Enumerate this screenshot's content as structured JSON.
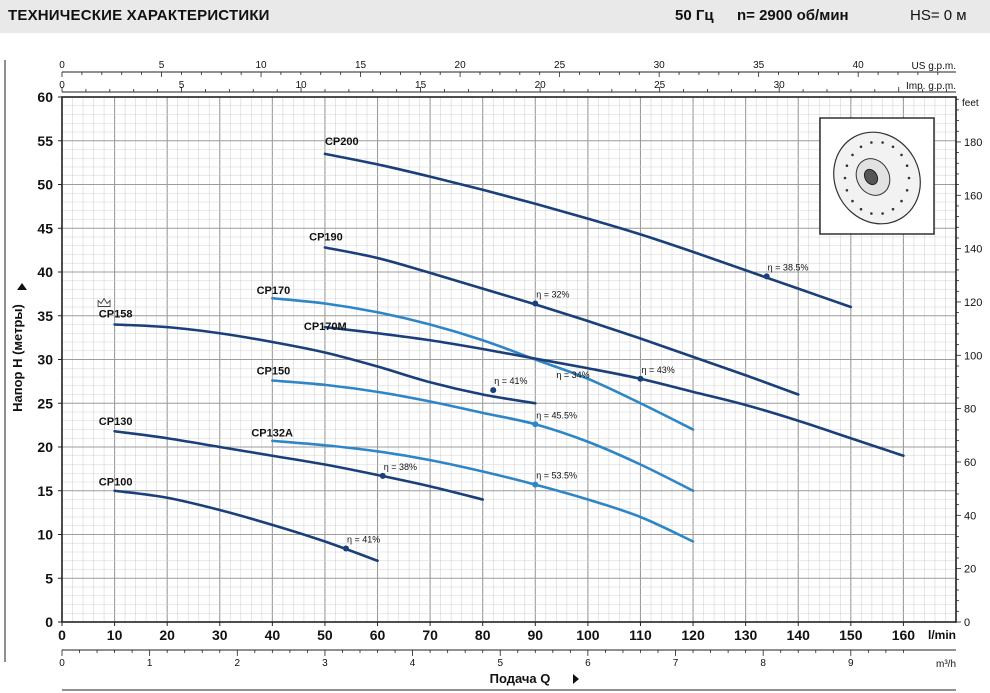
{
  "header": {
    "title": "ТЕХНИЧЕСКИЕ ХАРАКТЕРИСТИКИ",
    "frequency": "50 Гц",
    "speed": "n= 2900 об/мин",
    "hs": "HS= 0 м"
  },
  "chart_data": {
    "type": "line",
    "xlabel": "Подача Q",
    "ylabel": "Напор H (метры)",
    "x_unit": "l/min",
    "xlim": [
      0,
      170
    ],
    "ylim": [
      0,
      60
    ],
    "grid": true,
    "axes": {
      "bottom_lmin": {
        "ticks": [
          0,
          10,
          20,
          30,
          40,
          50,
          60,
          70,
          80,
          90,
          100,
          110,
          120,
          130,
          140,
          150,
          160
        ],
        "unit": "l/min"
      },
      "bottom_m3h": {
        "ticks": [
          0,
          1,
          2,
          3,
          4,
          5,
          6,
          7,
          8,
          9
        ],
        "unit": "m³/h"
      },
      "top_usgpm": {
        "ticks": [
          0,
          5,
          10,
          15,
          20,
          25,
          30,
          35,
          40
        ],
        "unit": "US g.p.m."
      },
      "top_impgpm": {
        "ticks": [
          0,
          5,
          10,
          15,
          20,
          25,
          30
        ],
        "unit": "Imp. g.p.m."
      },
      "left_m": {
        "ticks": [
          0,
          5,
          10,
          15,
          20,
          25,
          30,
          35,
          40,
          45,
          50,
          55,
          60
        ]
      },
      "right_feet": {
        "ticks": [
          0,
          20,
          40,
          60,
          80,
          100,
          120,
          140,
          160,
          180
        ],
        "unit": "feet"
      }
    },
    "series": [
      {
        "name": "CP200",
        "color": "#1b3f7a",
        "label_at": [
          50,
          54.5
        ],
        "x": [
          50,
          60,
          70,
          80,
          90,
          100,
          110,
          120,
          130,
          140,
          150
        ],
        "y": [
          53.5,
          52.3,
          50.9,
          49.4,
          47.8,
          46.1,
          44.3,
          42.3,
          40.2,
          38.1,
          36.0
        ],
        "eff": {
          "label": "η = 38.5%",
          "x": 134,
          "y": 39.5
        }
      },
      {
        "name": "CP190",
        "color": "#1b3f7a",
        "label_at": [
          47,
          43.6
        ],
        "x": [
          50,
          60,
          70,
          80,
          90,
          100,
          110,
          120,
          130,
          140
        ],
        "y": [
          42.8,
          41.6,
          39.9,
          38.1,
          36.3,
          34.4,
          32.4,
          30.3,
          28.2,
          26.0
        ],
        "eff": {
          "label": "η = 32%",
          "x": 90,
          "y": 36.4
        }
      },
      {
        "name": "CP170",
        "color": "#2f86c6",
        "label_at": [
          37,
          37.5
        ],
        "x": [
          40,
          50,
          60,
          70,
          80,
          90,
          100,
          110,
          120
        ],
        "y": [
          37.0,
          36.4,
          35.4,
          34.0,
          32.2,
          30.0,
          27.8,
          25.0,
          22.0
        ],
        "eff": {
          "label": "η = 34%",
          "x": 94,
          "y": 27.9,
          "marker": false
        }
      },
      {
        "name": "CP170M",
        "color": "#1b3f7a",
        "label_at": [
          46,
          33.4
        ],
        "x": [
          50,
          60,
          70,
          80,
          90,
          100,
          110,
          120,
          130,
          140,
          150,
          160
        ],
        "y": [
          33.7,
          33.0,
          32.2,
          31.2,
          30.1,
          29.0,
          27.8,
          26.3,
          24.8,
          23.0,
          21.0,
          19.0
        ],
        "eff": {
          "label": "η = 43%",
          "x": 110,
          "y": 27.8
        }
      },
      {
        "name": "CP158",
        "color": "#1b3f7a",
        "label_at": [
          7,
          34.8
        ],
        "x": [
          10,
          20,
          30,
          40,
          50,
          60,
          70,
          80,
          90
        ],
        "y": [
          34.0,
          33.7,
          33.0,
          32.0,
          30.8,
          29.2,
          27.4,
          26.0,
          25.0
        ],
        "eff": {
          "label": "η = 41%",
          "x": 82,
          "y": 26.5
        }
      },
      {
        "name": "CP150",
        "color": "#2f86c6",
        "label_at": [
          37,
          28.3
        ],
        "x": [
          40,
          50,
          60,
          70,
          80,
          90,
          100,
          110,
          120
        ],
        "y": [
          27.6,
          27.1,
          26.3,
          25.2,
          23.9,
          22.6,
          20.6,
          18.0,
          15.0
        ],
        "eff": {
          "label": "η = 45.5%",
          "x": 90,
          "y": 22.6
        }
      },
      {
        "name": "CP130",
        "color": "#1b3f7a",
        "label_at": [
          7,
          22.5
        ],
        "x": [
          10,
          20,
          30,
          40,
          50,
          60,
          70,
          80
        ],
        "y": [
          21.8,
          21.0,
          20.0,
          19.0,
          18.0,
          16.8,
          15.5,
          14.0
        ],
        "eff": {
          "label": "η = 38%",
          "x": 61,
          "y": 16.7
        }
      },
      {
        "name": "CP132A",
        "color": "#2f86c6",
        "label_at": [
          36,
          21.2
        ],
        "x": [
          40,
          50,
          60,
          70,
          80,
          90,
          100,
          110,
          120
        ],
        "y": [
          20.7,
          20.2,
          19.5,
          18.5,
          17.2,
          15.7,
          14.0,
          12.0,
          9.2
        ],
        "eff": {
          "label": "η = 53.5%",
          "x": 90,
          "y": 15.7
        }
      },
      {
        "name": "CP100",
        "color": "#1b3f7a",
        "label_at": [
          7,
          15.6
        ],
        "x": [
          10,
          20,
          30,
          40,
          50,
          60
        ],
        "y": [
          15.0,
          14.2,
          12.8,
          11.1,
          9.2,
          7.0
        ],
        "eff": {
          "label": "η = 41%",
          "x": 54,
          "y": 8.4
        }
      }
    ]
  }
}
